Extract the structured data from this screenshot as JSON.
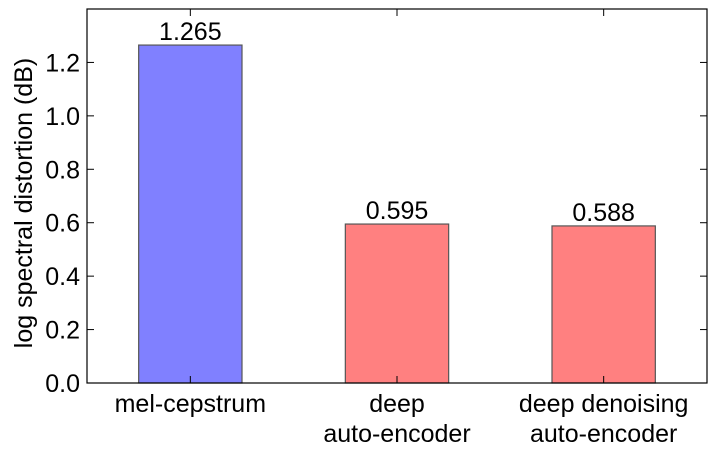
{
  "chart_data": {
    "type": "bar",
    "categories": [
      [
        "mel-cepstrum"
      ],
      [
        "deep",
        "auto-encoder"
      ],
      [
        "deep denoising",
        "auto-encoder"
      ]
    ],
    "values": [
      1.265,
      0.595,
      0.588
    ],
    "data_labels": [
      "1.265",
      "0.595",
      "0.588"
    ],
    "bar_colors": [
      "#8080ff",
      "#ff8080",
      "#ff8080"
    ],
    "bar_edge_color": "#555555",
    "ylabel": "log spectral distortion (dB)",
    "ylim": [
      0,
      1.4
    ],
    "yticks": [
      "0.0",
      "0.2",
      "0.4",
      "0.6",
      "0.8",
      "1.0",
      "1.2"
    ],
    "grid": false,
    "legend": "none"
  }
}
